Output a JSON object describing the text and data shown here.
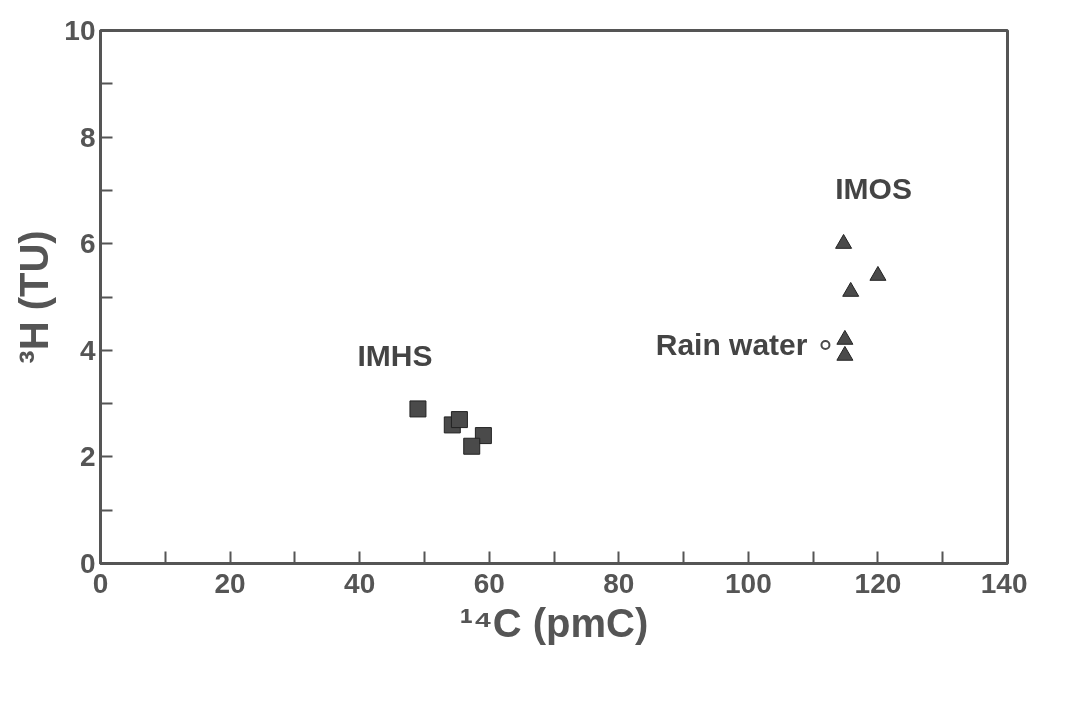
{
  "chart_data": {
    "type": "scatter",
    "xlabel": "¹⁴C (pmC)",
    "ylabel": "³H (TU)",
    "xlim": [
      0,
      140
    ],
    "ylim": [
      0,
      10
    ],
    "xticks": [
      0,
      {
        "value": 10,
        "label": null
      },
      20,
      {
        "value": 30,
        "label": null
      },
      40,
      {
        "value": 50,
        "label": null
      },
      60,
      {
        "value": 70,
        "label": null
      },
      80,
      {
        "value": 90,
        "label": null
      },
      100,
      {
        "value": 110,
        "label": null
      },
      120,
      {
        "value": 130,
        "label": null
      },
      140
    ],
    "yticks": [
      0,
      {
        "value": 1,
        "label": null
      },
      2,
      {
        "value": 3,
        "label": null
      },
      4,
      {
        "value": 5,
        "label": null
      },
      6,
      {
        "value": 7,
        "label": null
      },
      8,
      {
        "value": 9,
        "label": null
      },
      10
    ],
    "grid": false,
    "series": [
      {
        "name": "IMHS",
        "marker": "square",
        "color": "#4a4a4a",
        "x": [
          49.0,
          54.3,
          55.4,
          59.1,
          57.3
        ],
        "values": [
          2.9,
          2.6,
          2.7,
          2.4,
          2.2
        ]
      },
      {
        "name": "IMOS",
        "marker": "triangle",
        "color": "#4a4a4a",
        "x": [
          114.7,
          120.0,
          115.8,
          114.9,
          114.9
        ],
        "values": [
          6.0,
          5.4,
          5.1,
          4.2,
          3.9
        ]
      },
      {
        "name": "Rain water",
        "marker": "circle",
        "color": "#4a4a4a",
        "x": [
          111.9
        ],
        "values": [
          4.1
        ]
      }
    ]
  }
}
